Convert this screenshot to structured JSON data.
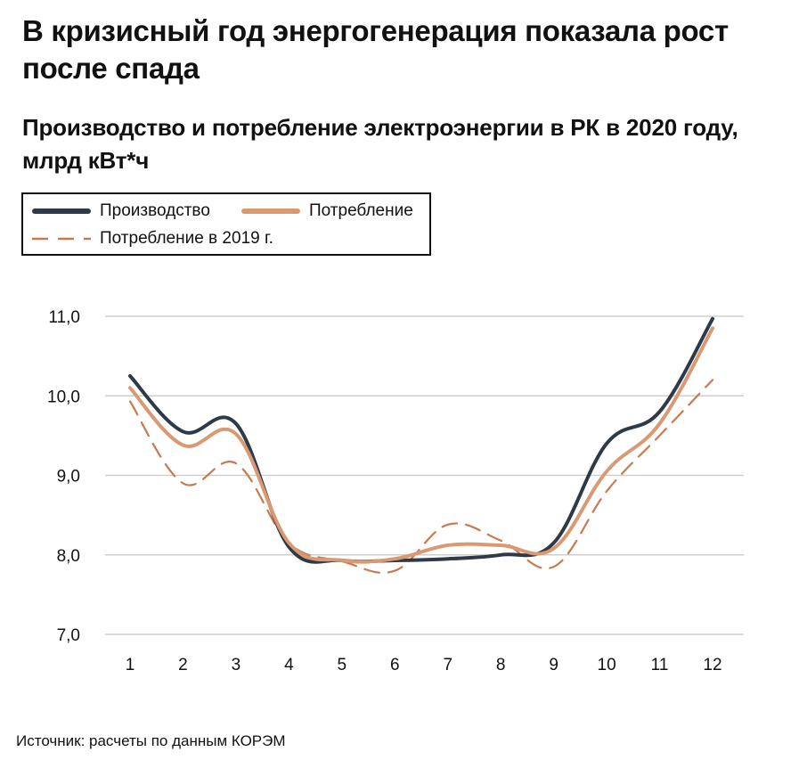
{
  "header": {
    "title": "В кризисный год энергогенерация показала рост после спада",
    "subtitle": "Производство и потребление электроэнергии в РК в 2020 году, млрд кВт*ч"
  },
  "legend": {
    "items": [
      {
        "key": "production",
        "label": "Производство"
      },
      {
        "key": "consumption",
        "label": "Потребление"
      },
      {
        "key": "consumption_2019",
        "label": "Потребление в 2019 г."
      }
    ]
  },
  "colors": {
    "production": "#2e3a48",
    "consumption": "#d99a73",
    "consumption_2019": "#c9794f",
    "grid": "#cfcfcf"
  },
  "chart_data": {
    "type": "line",
    "title": "Производство и потребление электроэнергии в РК в 2020 году, млрд кВт*ч",
    "xlabel": "",
    "ylabel": "",
    "x": [
      1,
      2,
      3,
      4,
      5,
      6,
      7,
      8,
      9,
      10,
      11,
      12
    ],
    "x_tick_labels": [
      "1",
      "2",
      "3",
      "4",
      "5",
      "6",
      "7",
      "8",
      "9",
      "10",
      "11",
      "12"
    ],
    "ylim": [
      7.0,
      11.0
    ],
    "y_ticks": [
      7.0,
      8.0,
      9.0,
      10.0,
      11.0
    ],
    "y_tick_labels": [
      "7,0",
      "8,0",
      "9,0",
      "10,0",
      "11,0"
    ],
    "grid": true,
    "legend_position": "top-left",
    "series": [
      {
        "name": "Производство",
        "style": "solid",
        "values": [
          10.25,
          9.55,
          9.65,
          8.1,
          7.93,
          7.93,
          7.95,
          8.0,
          8.15,
          9.4,
          9.8,
          10.97
        ]
      },
      {
        "name": "Потребление",
        "style": "solid",
        "values": [
          10.1,
          9.38,
          9.52,
          8.15,
          7.93,
          7.95,
          8.12,
          8.12,
          8.08,
          9.05,
          9.65,
          10.85
        ]
      },
      {
        "name": "Потребление в 2019 г.",
        "style": "dashed",
        "values": [
          9.93,
          8.9,
          9.15,
          8.15,
          7.92,
          7.8,
          8.38,
          8.18,
          7.85,
          8.8,
          9.5,
          10.2
        ]
      }
    ]
  },
  "footer": {
    "source": "Источник: расчеты по данным КОРЭМ"
  }
}
